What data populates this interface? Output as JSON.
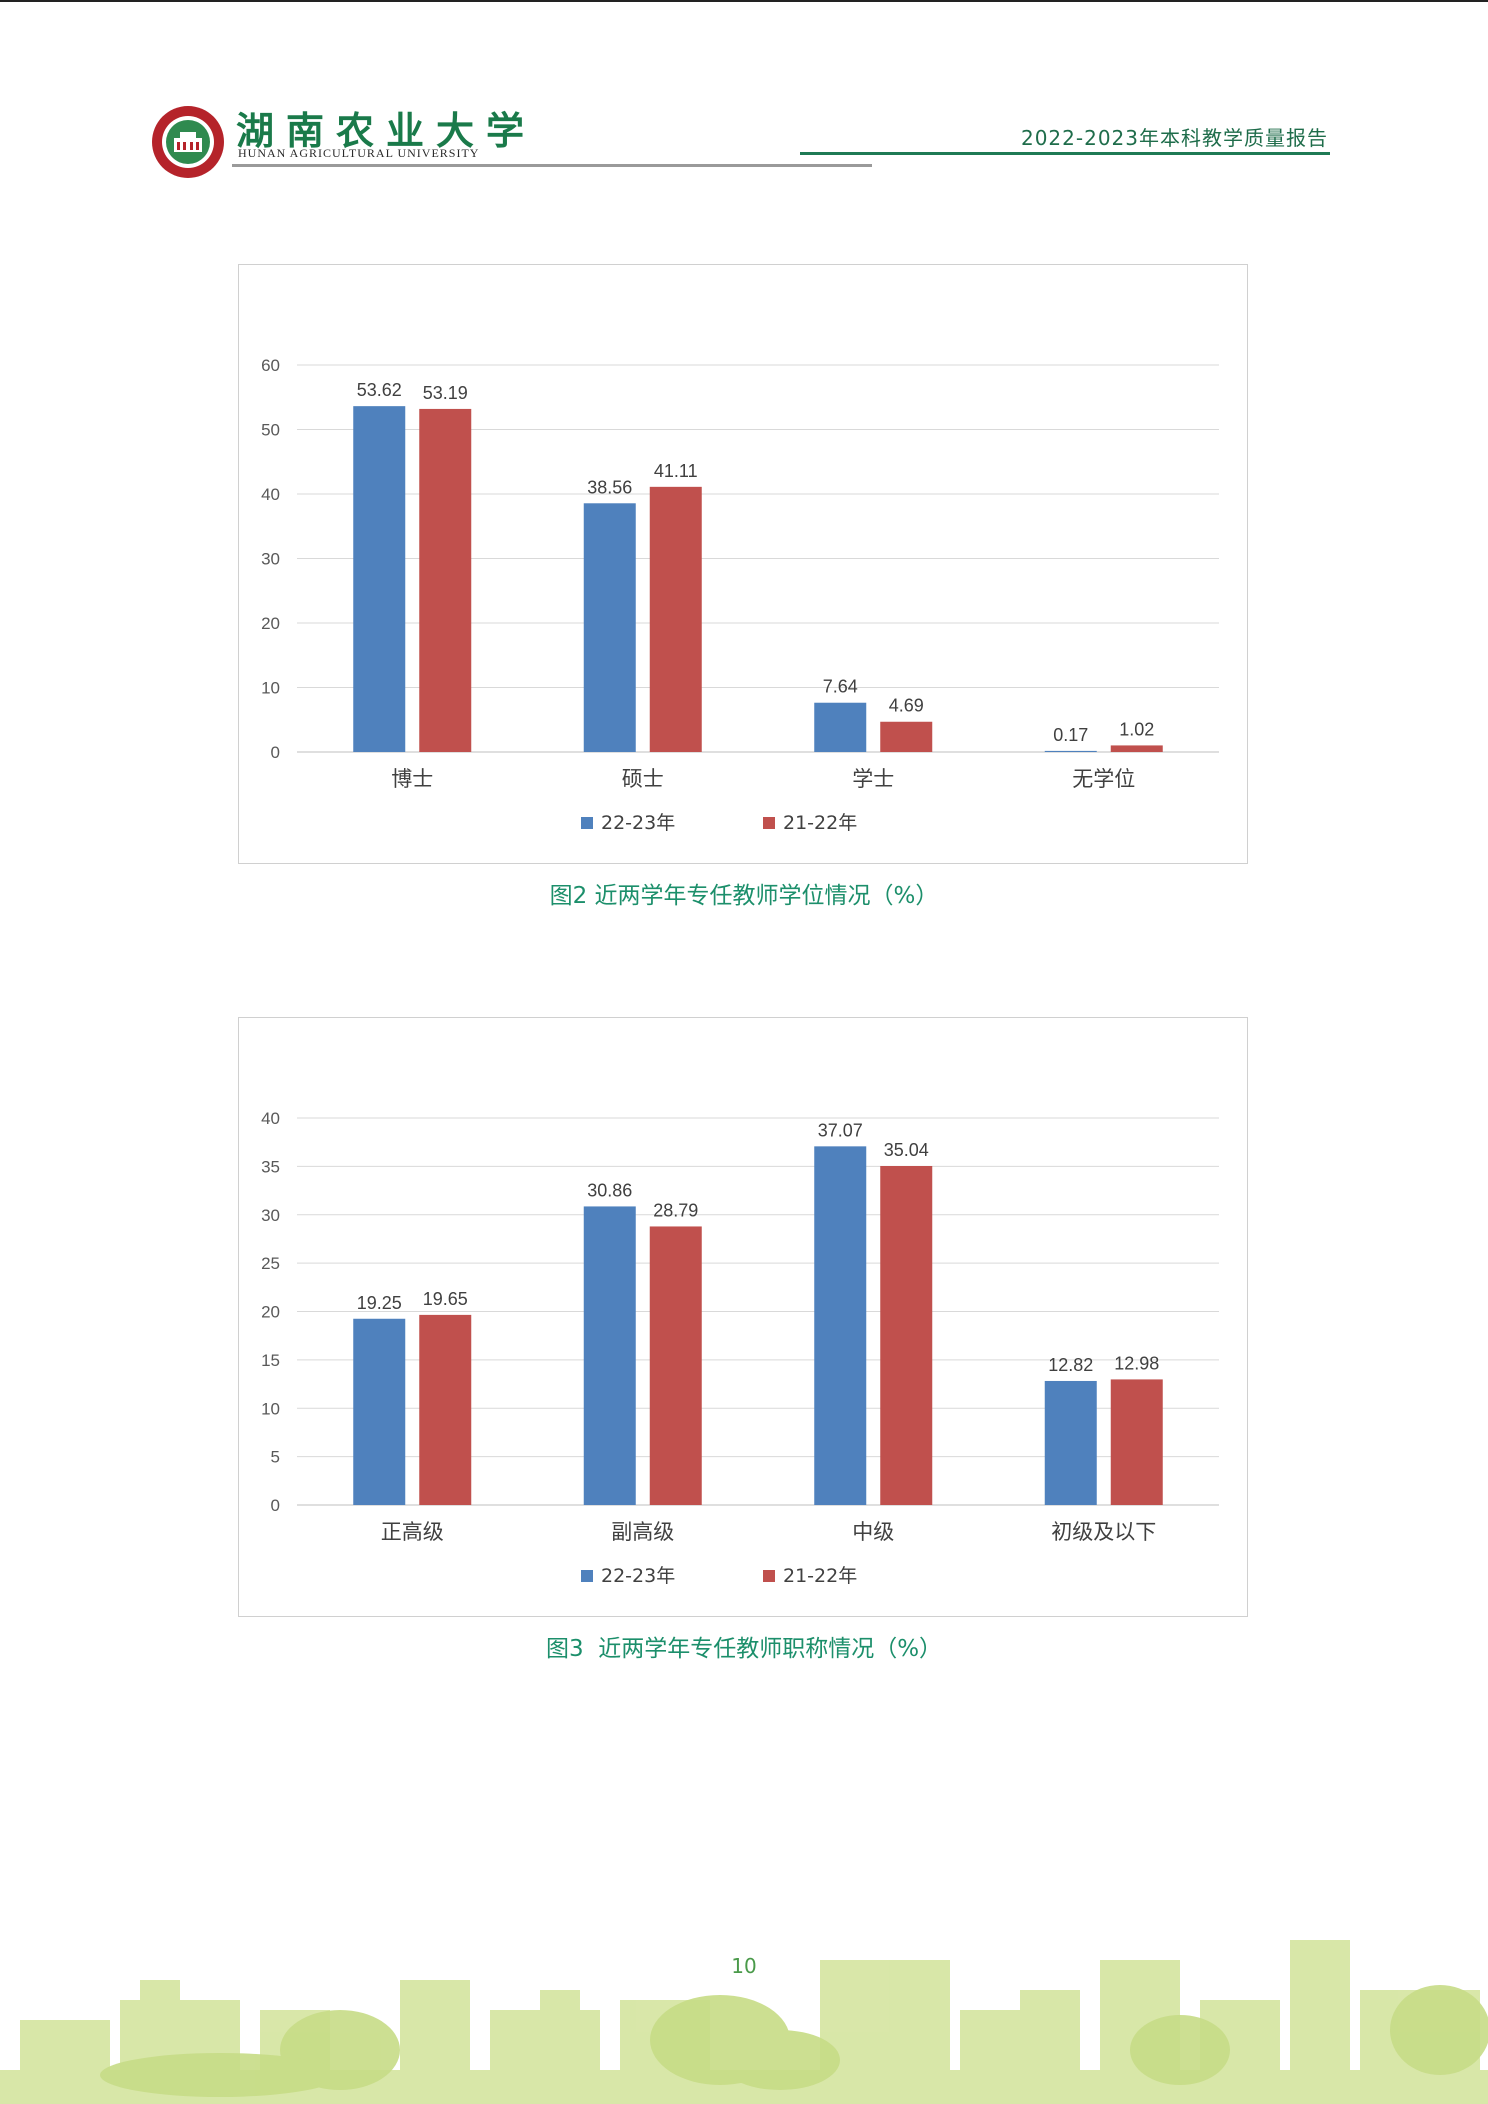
{
  "header": {
    "university_cn": "湖南农业大学",
    "university_en": "HUNAN AGRICULTURAL UNIVERSITY",
    "report_title": "2022-2023年本科教学质量报告"
  },
  "colors": {
    "series_a": "#4f81bd",
    "series_b": "#c0504d",
    "caption": "#1c8f6b",
    "brand_green": "#1f7a55"
  },
  "chart_data": [
    {
      "type": "bar",
      "categories": [
        "博士",
        "硕士",
        "学士",
        "无学位"
      ],
      "series": [
        {
          "name": "22-23年",
          "values": [
            53.62,
            38.56,
            7.64,
            0.17
          ]
        },
        {
          "name": "21-22年",
          "values": [
            53.19,
            41.11,
            4.69,
            1.02
          ]
        }
      ],
      "ylim": [
        0,
        60
      ],
      "yticks": [
        0,
        10,
        20,
        30,
        40,
        50,
        60
      ],
      "grid": true,
      "legend": "bottom",
      "data_labels": true
    },
    {
      "type": "bar",
      "categories": [
        "正高级",
        "副高级",
        "中级",
        "初级及以下"
      ],
      "series": [
        {
          "name": "22-23年",
          "values": [
            19.25,
            30.86,
            37.07,
            12.82
          ]
        },
        {
          "name": "21-22年",
          "values": [
            19.65,
            28.79,
            35.04,
            12.98
          ]
        }
      ],
      "ylim": [
        0,
        40
      ],
      "yticks": [
        0,
        5,
        10,
        15,
        20,
        25,
        30,
        35,
        40
      ],
      "grid": true,
      "legend": "bottom",
      "data_labels": true
    }
  ],
  "captions": {
    "fig2": "图2 近两学年专任教师学位情况（%）",
    "fig3": "图3  近两学年专任教师职称情况（%）"
  },
  "page_number": "10"
}
